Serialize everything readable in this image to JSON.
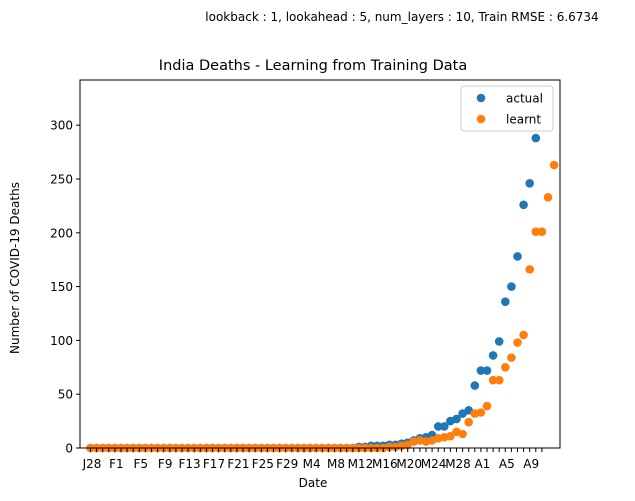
{
  "chart_data": {
    "type": "scatter",
    "suptitle": "lookback : 1, lookahead : 5, num_layers : 10, Train RMSE : 6.6734",
    "title": "India Deaths - Learning from Training Data",
    "xlabel": "Date",
    "ylabel": "Number of COVID-19 Deaths",
    "ylim": [
      0,
      342
    ],
    "yticks": [
      0,
      50,
      100,
      150,
      200,
      250,
      300
    ],
    "grid": false,
    "legend_position": "upper right",
    "x_tick_labels": [
      "J28",
      "",
      "",
      "",
      "F1",
      "",
      "",
      "",
      "F5",
      "",
      "",
      "",
      "F9",
      "",
      "",
      "",
      "F13",
      "",
      "",
      "",
      "F17",
      "",
      "",
      "",
      "F21",
      "",
      "",
      "",
      "F25",
      "",
      "",
      "",
      "F29",
      "",
      "",
      "",
      "M4",
      "",
      "",
      "",
      "M8",
      "",
      "",
      "",
      "M12",
      "",
      "",
      "",
      "M16",
      "",
      "",
      "",
      "M20",
      "",
      "",
      "",
      "M24",
      "",
      "",
      "",
      "M28",
      "",
      "",
      "",
      "A1",
      "",
      "",
      "",
      "A5",
      "",
      "",
      "",
      "A9",
      "",
      ""
    ],
    "series": [
      {
        "name": "actual",
        "color": "#1f77b4",
        "values": [
          0,
          0,
          0,
          0,
          0,
          0,
          0,
          0,
          0,
          0,
          0,
          0,
          0,
          0,
          0,
          0,
          0,
          0,
          0,
          0,
          0,
          0,
          0,
          0,
          0,
          0,
          0,
          0,
          0,
          0,
          0,
          0,
          0,
          0,
          0,
          0,
          0,
          0,
          0,
          0,
          0,
          0,
          0,
          0,
          1,
          1,
          2,
          2,
          2,
          3,
          3,
          4,
          5,
          7,
          9,
          10,
          12,
          20,
          20,
          25,
          27,
          32,
          35,
          58,
          72,
          72,
          86,
          99,
          136,
          150,
          178,
          226,
          246,
          288
        ]
      },
      {
        "name": "learnt",
        "color": "#ff7f0e",
        "values": [
          0,
          0,
          0,
          0,
          0,
          0,
          0,
          0,
          0,
          0,
          0,
          0,
          0,
          0,
          0,
          0,
          0,
          0,
          0,
          0,
          0,
          0,
          0,
          0,
          0,
          0,
          0,
          0,
          0,
          0,
          0,
          0,
          0,
          0,
          0,
          0,
          0,
          0,
          0,
          0,
          0,
          0,
          0,
          0,
          0,
          0,
          0,
          0,
          0,
          1,
          1,
          2,
          3,
          6,
          7,
          6,
          7,
          9,
          10,
          11,
          15,
          13,
          24,
          32,
          33,
          39,
          63,
          63,
          75,
          84,
          98,
          105,
          166,
          201,
          201,
          233,
          263
        ]
      }
    ]
  }
}
